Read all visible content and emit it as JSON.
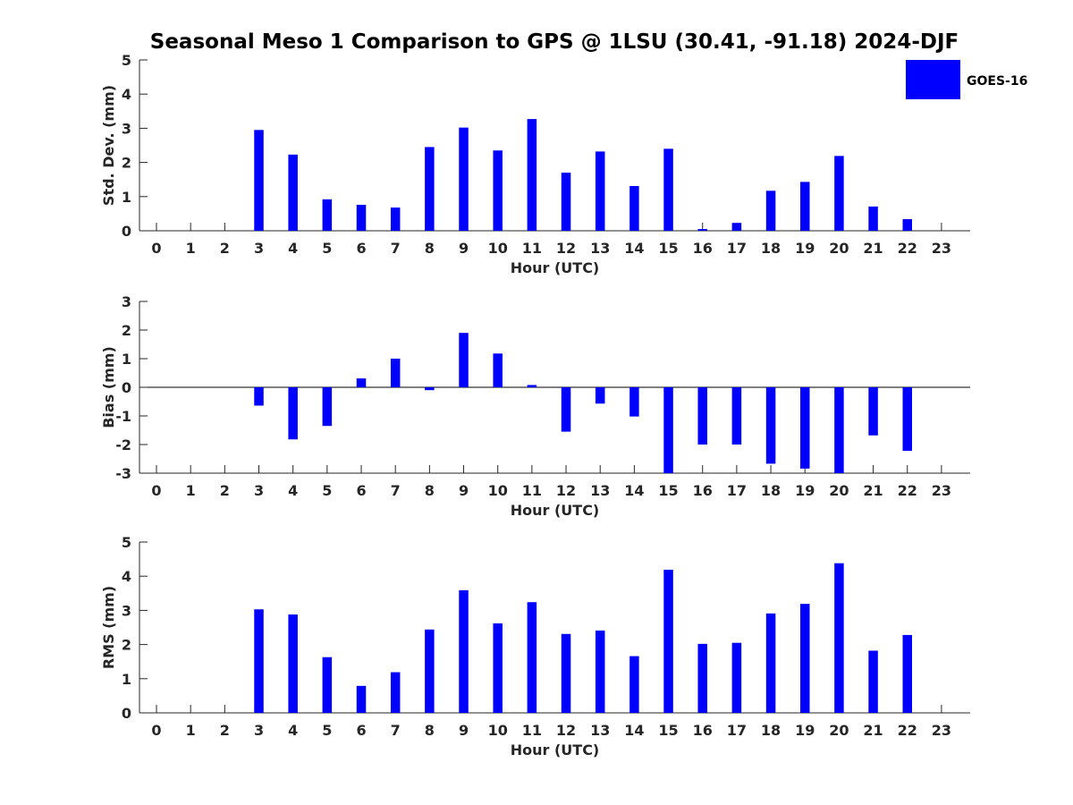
{
  "chart_data": {
    "title": "Seasonal Meso 1 Comparison to GPS @ 1LSU (30.41, -91.18) 2024-DJF",
    "type": "bar",
    "legend": {
      "placement": "top-right",
      "entries": [
        "GOES-16"
      ]
    },
    "bar_color": "#0000ff",
    "categories": [
      "0",
      "1",
      "2",
      "3",
      "4",
      "5",
      "6",
      "7",
      "8",
      "9",
      "10",
      "11",
      "12",
      "13",
      "14",
      "15",
      "16",
      "17",
      "18",
      "19",
      "20",
      "21",
      "22",
      "23"
    ],
    "panels": [
      {
        "ylabel": "Std. Dev. (mm)",
        "xlabel": "Hour (UTC)",
        "ylim": [
          0,
          5
        ],
        "yticks": [
          "0",
          "1",
          "2",
          "3",
          "4",
          "5"
        ],
        "series": [
          {
            "name": "GOES-16",
            "values": [
              null,
              null,
              null,
              2.95,
              2.23,
              0.92,
              0.76,
              0.68,
              2.45,
              3.02,
              2.35,
              3.27,
              1.7,
              2.32,
              1.31,
              2.4,
              0.05,
              0.23,
              1.17,
              1.43,
              2.19,
              0.71,
              0.34,
              null
            ]
          }
        ]
      },
      {
        "ylabel": "Bias (mm)",
        "xlabel": "Hour (UTC)",
        "ylim": [
          -3,
          3
        ],
        "yticks": [
          "-3",
          "-2",
          "-1",
          "0",
          "1",
          "2",
          "3"
        ],
        "series": [
          {
            "name": "GOES-16",
            "values": [
              null,
              null,
              null,
              -0.64,
              -1.82,
              -1.35,
              0.31,
              1.0,
              -0.1,
              1.9,
              1.18,
              0.08,
              -1.55,
              -0.57,
              -1.02,
              -3.0,
              -2.0,
              -2.0,
              -2.67,
              -2.84,
              -3.0,
              -1.68,
              -2.22,
              null
            ]
          }
        ]
      },
      {
        "ylabel": "RMS (mm)",
        "xlabel": "Hour (UTC)",
        "ylim": [
          0,
          5
        ],
        "yticks": [
          "0",
          "1",
          "2",
          "3",
          "4",
          "5"
        ],
        "series": [
          {
            "name": "GOES-16",
            "values": [
              null,
              null,
              null,
              3.03,
              2.88,
              1.63,
              0.79,
              1.19,
              2.44,
              3.59,
              2.62,
              3.24,
              2.31,
              2.41,
              1.66,
              4.19,
              2.02,
              2.05,
              2.91,
              3.19,
              4.38,
              1.82,
              2.28,
              null
            ]
          }
        ]
      }
    ]
  }
}
